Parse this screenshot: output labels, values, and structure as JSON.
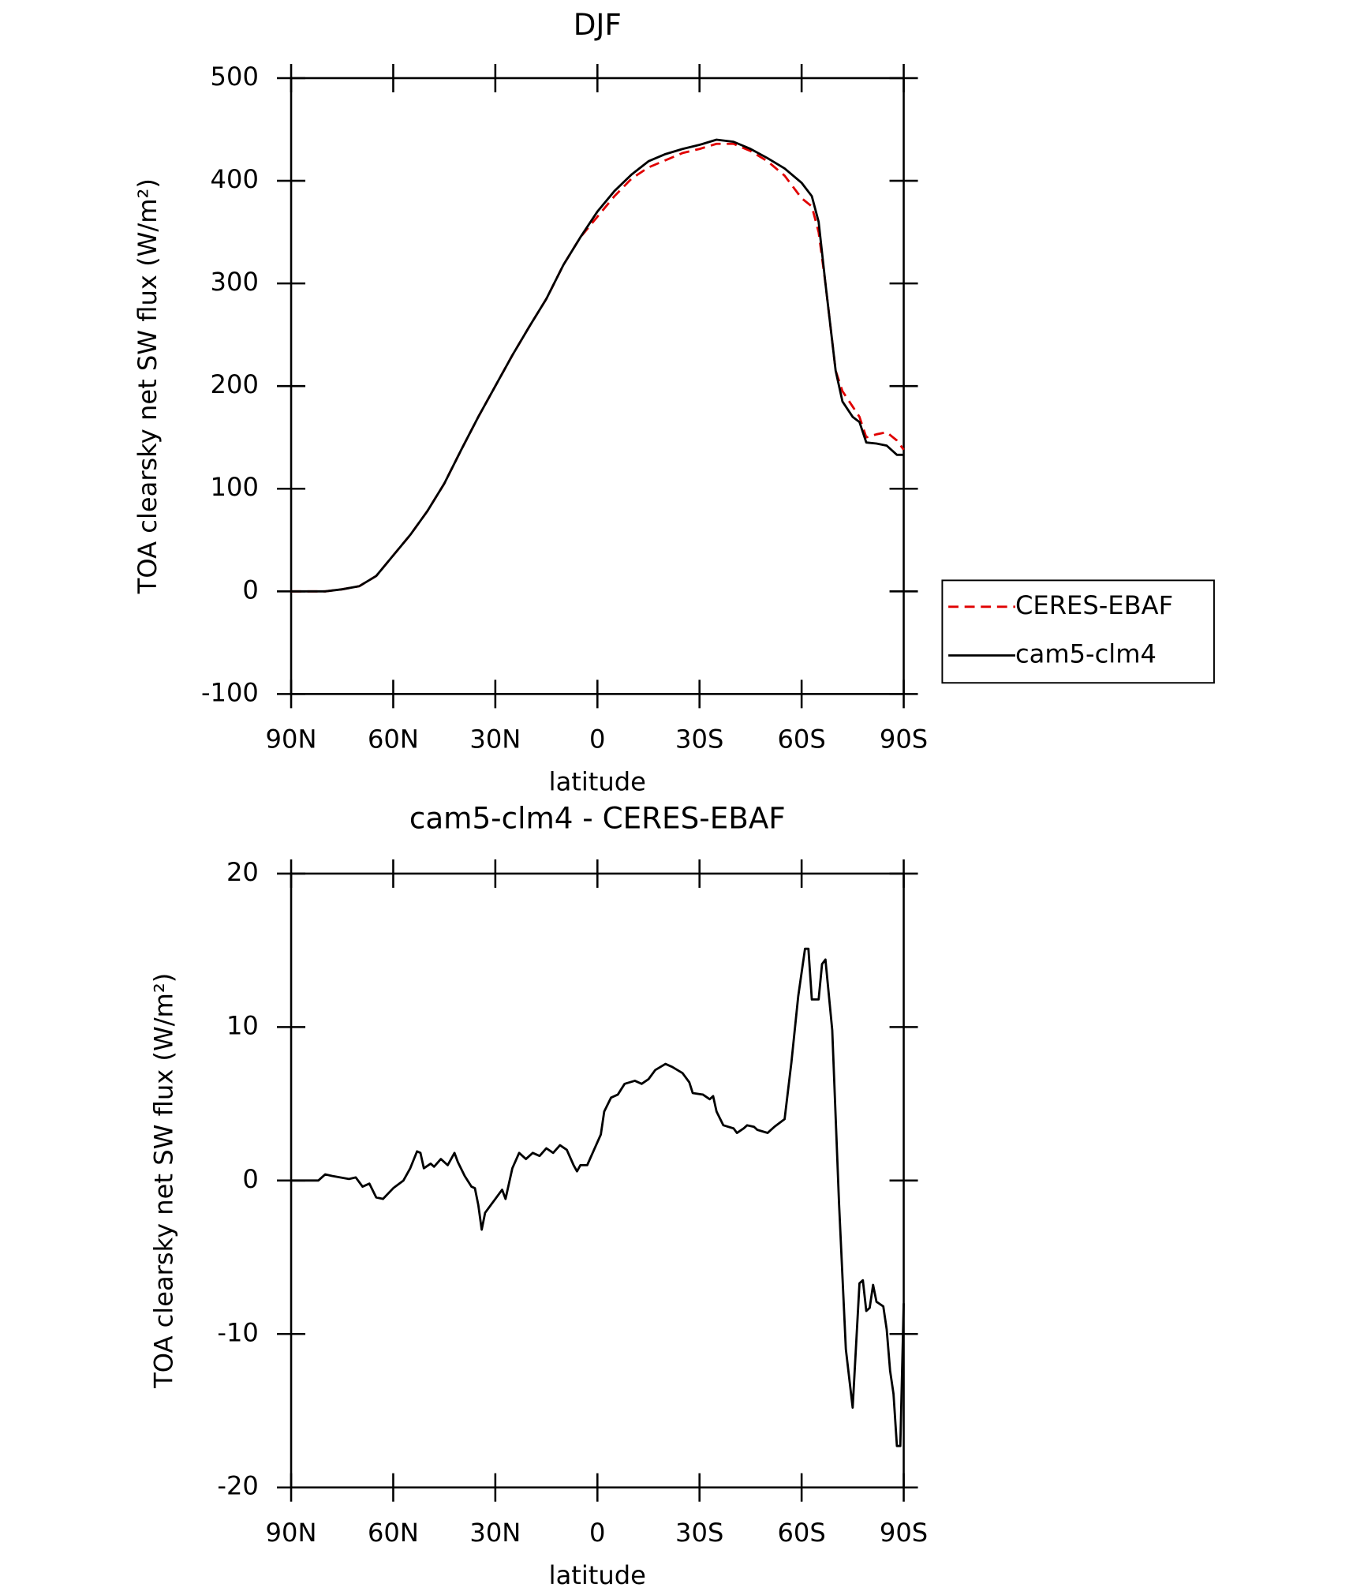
{
  "chart_data": [
    {
      "type": "line",
      "title": "DJF",
      "xlabel": "latitude",
      "ylabel": "TOA clearsky net SW flux (W/m²)",
      "x": [
        90,
        85,
        80,
        75,
        70,
        65,
        60,
        55,
        50,
        45,
        40,
        35,
        30,
        25,
        20,
        15,
        10,
        5,
        0,
        -5,
        -10,
        -15,
        -20,
        -25,
        -30,
        -35,
        -40,
        -45,
        -50,
        -55,
        -60,
        -63,
        -65,
        -67,
        -70,
        -72,
        -75,
        -77,
        -79,
        -82,
        -85,
        -88,
        -90
      ],
      "xlim": [
        90,
        -90
      ],
      "xticks": [
        {
          "value": 90,
          "label": "90N"
        },
        {
          "value": 60,
          "label": "60N"
        },
        {
          "value": 30,
          "label": "30N"
        },
        0,
        {
          "value": -30,
          "label": "30S"
        },
        {
          "value": -60,
          "label": "60S"
        },
        {
          "value": -90,
          "label": "90S"
        }
      ],
      "ylim": [
        -100,
        500
      ],
      "yticks": [
        -100,
        0,
        100,
        200,
        300,
        400,
        500
      ],
      "legend": "right",
      "series": [
        {
          "name": "CERES-EBAF",
          "color": "#e00000",
          "dash": true,
          "values": [
            0,
            0,
            0,
            2,
            5,
            15,
            35,
            55,
            78,
            105,
            138,
            170,
            200,
            230,
            258,
            285,
            318,
            345,
            365,
            385,
            402,
            413,
            420,
            427,
            431,
            436,
            436,
            429,
            419,
            405,
            383,
            375,
            350,
            300,
            215,
            195,
            180,
            170,
            150,
            153,
            155,
            147,
            138
          ]
        },
        {
          "name": "cam5-clm4",
          "color": "#000000",
          "dash": false,
          "values": [
            0,
            0,
            0,
            2,
            5,
            15,
            35,
            55,
            78,
            105,
            138,
            170,
            200,
            230,
            258,
            285,
            318,
            345,
            370,
            390,
            406,
            419,
            426,
            431,
            435,
            440,
            438,
            431,
            422,
            412,
            398,
            385,
            360,
            300,
            215,
            185,
            170,
            165,
            145,
            144,
            142,
            133,
            133
          ]
        }
      ]
    },
    {
      "type": "line",
      "title": "cam5-clm4 - CERES-EBAF",
      "xlabel": "latitude",
      "ylabel": "TOA clearsky net SW flux (W/m²)",
      "x": [
        90,
        82,
        80,
        78,
        73,
        71,
        69,
        67,
        65,
        63,
        60,
        57,
        55,
        53,
        52,
        51,
        49,
        48,
        46,
        44,
        42,
        41,
        39,
        37,
        36,
        35,
        34,
        33,
        30,
        28,
        27,
        25,
        23,
        21,
        19,
        17,
        15,
        13,
        11,
        9,
        7,
        6,
        5,
        3,
        1,
        -1,
        -2,
        -4,
        -6,
        -8,
        -11,
        -13,
        -15,
        -17,
        -20,
        -22,
        -25,
        -27,
        -28,
        -31,
        -33,
        -34,
        -35,
        -37,
        -40,
        -41,
        -43,
        -44,
        -46,
        -47,
        -50,
        -52,
        -55,
        -57,
        -59,
        -61,
        -62,
        -63,
        -65,
        -66,
        -67,
        -69,
        -71,
        -73,
        -75,
        -77,
        -78,
        -79,
        -80,
        -81,
        -82,
        -84,
        -85,
        -86,
        -87,
        -88,
        -89,
        -90
      ],
      "xlim": [
        90,
        -90
      ],
      "xticks": [
        {
          "value": 90,
          "label": "90N"
        },
        {
          "value": 60,
          "label": "60N"
        },
        {
          "value": 30,
          "label": "30N"
        },
        0,
        {
          "value": -30,
          "label": "30S"
        },
        {
          "value": -60,
          "label": "60S"
        },
        {
          "value": -90,
          "label": "90S"
        }
      ],
      "ylim": [
        -20,
        20
      ],
      "yticks": [
        -20,
        -10,
        0,
        10,
        20
      ],
      "legend": false,
      "series": [
        {
          "name": "cam5-clm4 - CERES-EBAF",
          "color": "#000000",
          "dash": false,
          "values": [
            0,
            0,
            0.4,
            0.3,
            0.1,
            0.2,
            -0.4,
            -0.2,
            -1.1,
            -1.2,
            -0.5,
            0,
            0.8,
            1.9,
            1.8,
            0.8,
            1.1,
            0.9,
            1.4,
            1.0,
            1.8,
            1.2,
            0.3,
            -0.4,
            -0.5,
            -1.6,
            -3.2,
            -2.1,
            -1.2,
            -0.6,
            -1.2,
            0.8,
            1.8,
            1.4,
            1.8,
            1.6,
            2.1,
            1.8,
            2.3,
            2.0,
            1.0,
            0.6,
            1.0,
            1.0,
            2.0,
            3.0,
            4.5,
            5.4,
            5.6,
            6.3,
            6.5,
            6.3,
            6.6,
            7.2,
            7.6,
            7.4,
            7.0,
            6.4,
            5.7,
            5.6,
            5.3,
            5.5,
            4.5,
            3.6,
            3.4,
            3.1,
            3.4,
            3.6,
            3.5,
            3.3,
            3.1,
            3.5,
            4.0,
            7.7,
            12,
            15.1,
            15.1,
            11.8,
            11.8,
            14.1,
            14.4,
            9.8,
            -1.5,
            -11,
            -14.8,
            -6.7,
            -6.5,
            -8.5,
            -8.3,
            -6.8,
            -7.9,
            -8.2,
            -9.7,
            -12.4,
            -13.9,
            -17.3,
            -17.3,
            -8
          ]
        }
      ]
    }
  ]
}
